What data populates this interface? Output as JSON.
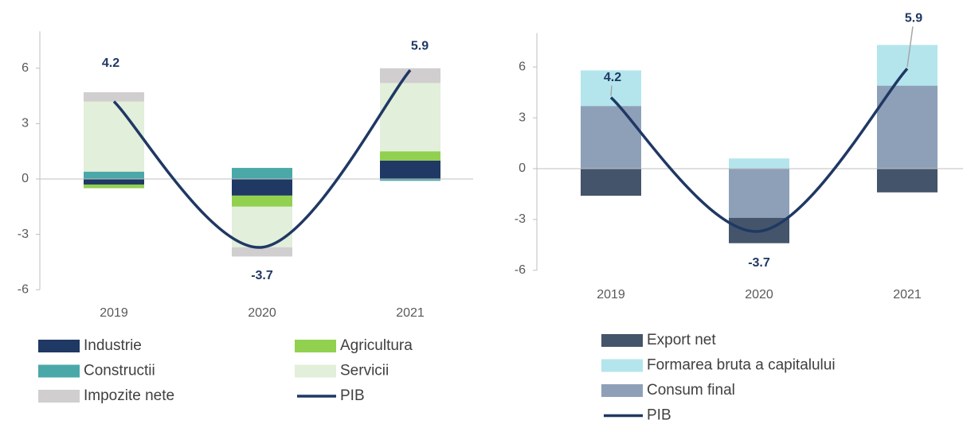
{
  "chart_data": [
    {
      "type": "bar",
      "stacked": true,
      "categories": [
        "2019",
        "2020",
        "2021"
      ],
      "ylim": [
        -6,
        8
      ],
      "yticks": [
        -6,
        -3,
        0,
        3,
        6
      ],
      "series": [
        {
          "name": "Industrie",
          "color": "#1f3864",
          "values": [
            -0.3,
            -0.9,
            1.0
          ]
        },
        {
          "name": "Agricultura",
          "color": "#92d050",
          "values": [
            -0.2,
            -0.6,
            0.5
          ]
        },
        {
          "name": "Constructii",
          "color": "#4aa8a8",
          "values": [
            0.4,
            0.6,
            -0.1
          ]
        },
        {
          "name": "Servicii",
          "color": "#e2efda",
          "values": [
            3.8,
            -2.2,
            3.7
          ]
        },
        {
          "name": "Impozite nete",
          "color": "#d0cece",
          "values": [
            0.5,
            -0.5,
            0.8
          ]
        },
        {
          "name": "PIB",
          "type": "line",
          "color": "#1f3864",
          "values": [
            4.2,
            -3.7,
            5.9
          ]
        }
      ]
    },
    {
      "type": "bar",
      "stacked": true,
      "stack_order": "reverse",
      "leader_lines": true,
      "categories": [
        "2019",
        "2020",
        "2021"
      ],
      "ylim": [
        -6,
        8
      ],
      "yticks": [
        -6,
        -3,
        0,
        3,
        6
      ],
      "series": [
        {
          "name": "Export net",
          "color": "#44546a",
          "values": [
            -1.6,
            -1.5,
            -1.4
          ]
        },
        {
          "name": "Formarea bruta a capitalului",
          "color": "#b4e5ec",
          "values": [
            2.1,
            0.6,
            2.4
          ]
        },
        {
          "name": "Consum final",
          "color": "#8ea0b8",
          "values": [
            3.7,
            -2.9,
            4.9
          ]
        },
        {
          "name": "PIB",
          "type": "line",
          "color": "#1f3864",
          "values": [
            4.2,
            -3.7,
            5.9
          ]
        }
      ]
    }
  ]
}
